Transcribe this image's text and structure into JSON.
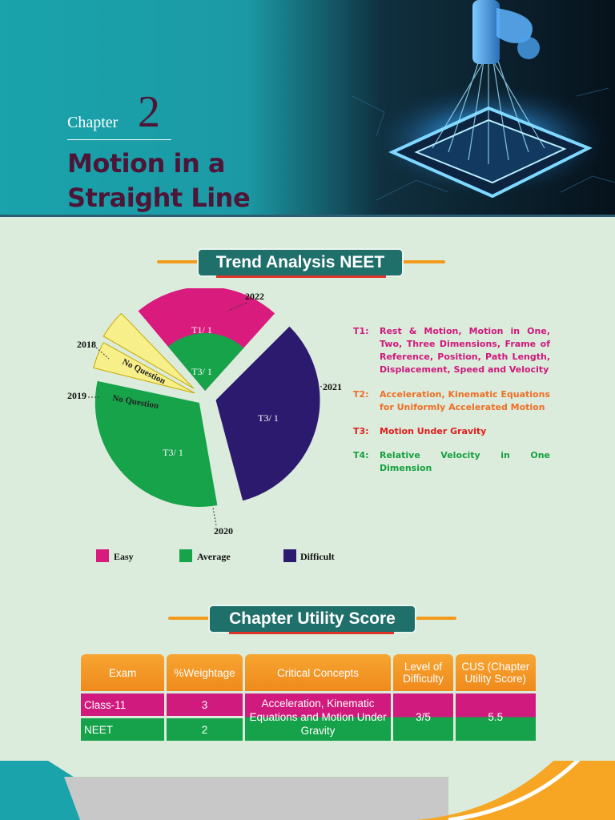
{
  "header": {
    "chapter_label": "Chapter",
    "chapter_number": "2",
    "title_line1": "Motion in a",
    "title_line2": "Straight Line"
  },
  "trend": {
    "heading": "Trend Analysis NEET",
    "years": [
      "2022",
      "2021",
      "2020",
      "2018",
      "2019"
    ],
    "legend": [
      "Easy",
      "Average",
      "Difficult"
    ],
    "legend_colors": [
      "#d91b7e",
      "#16a34a",
      "#2c1a6e"
    ],
    "topics": [
      {
        "code": "T1:",
        "text": "Rest & Motion, Motion in One, Two, Three Dimensions, Frame of Reference,  Position, Path Length, Displacement, Speed and Velocity",
        "color": "#d0177c"
      },
      {
        "code": "T2:",
        "text": "Acceleration, Kinematic Equations for Uniformly Accelerated Motion",
        "color": "#ee6e25"
      },
      {
        "code": "T3:",
        "text": "Motion Under Gravity",
        "color": "#e01b1b"
      },
      {
        "code": "T4:",
        "text": "Relative Velocity in One Dimension",
        "color": "#15a03e"
      }
    ]
  },
  "chart_data": {
    "type": "pie",
    "slices": [
      {
        "year": "2022",
        "difficulty": "Easy",
        "label": "T1/ 1",
        "inner_label": "T3/ 1",
        "inner_difficulty": "Average"
      },
      {
        "year": "2021",
        "difficulty": "Difficult",
        "label": "T3/ 1"
      },
      {
        "year": "2020",
        "difficulty": "Average",
        "label": "T3/ 1"
      },
      {
        "year": "2019",
        "label": "No Question"
      },
      {
        "year": "2018",
        "label": "No Question"
      }
    ]
  },
  "cus": {
    "heading": "Chapter Utility Score",
    "columns": [
      "Exam",
      "%Weightage",
      "Critical Concepts",
      "Level of Difficulty",
      "CUS (Chapter Utility Score)"
    ],
    "rows": [
      {
        "exam": "Class-11",
        "weightage": "3"
      },
      {
        "exam": "NEET",
        "weightage": "2"
      }
    ],
    "critical_concepts": "Acceleration, Kinematic Equations and Motion Under Gravity",
    "level_of_difficulty": "3/5",
    "cus_value": "5.5"
  }
}
